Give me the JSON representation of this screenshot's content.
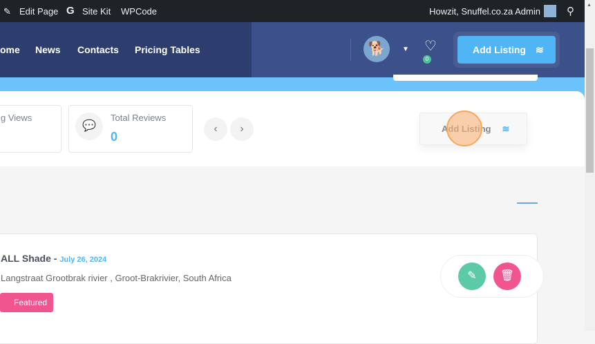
{
  "admin_bar": {
    "edit_page": "Edit Page",
    "site_kit": "Site Kit",
    "wpcode": "WPCode",
    "greeting": "Howzit, Snuffel.co.za Admin"
  },
  "nav": {
    "items": [
      "ome",
      "News",
      "Contacts",
      "Pricing Tables"
    ],
    "favorites_count": "0",
    "add_listing": "Add Listing"
  },
  "stats": [
    {
      "label": "g Views"
    },
    {
      "label": "Total Reviews",
      "value": "0"
    }
  ],
  "panel": {
    "add_listing": "Add Listing"
  },
  "listing": {
    "title": "ALL Shade -",
    "date": "July 26, 2024",
    "address": "Langstraat Grootbrak rivier , Groot-Brakrivier, South Africa",
    "badge": "Featured"
  },
  "colors": {
    "accent": "#4fb5f5",
    "edit": "#5ccaa6",
    "delete": "#f0558f",
    "featured": "#f0558f"
  }
}
